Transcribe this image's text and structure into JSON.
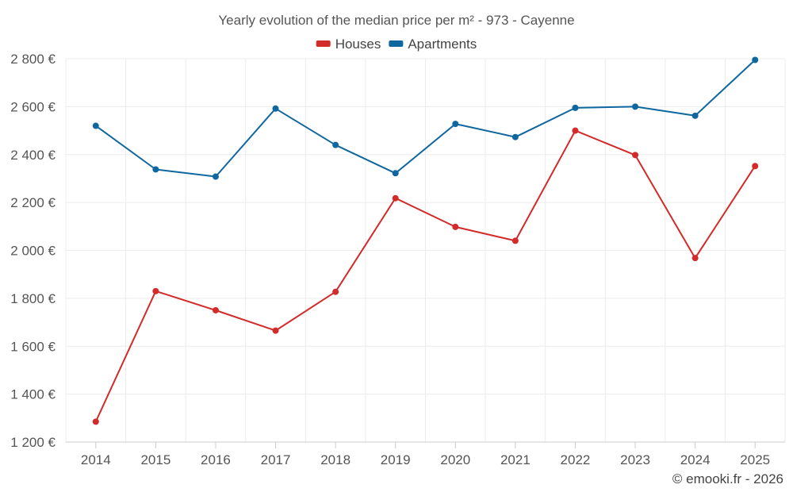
{
  "chart_data": {
    "type": "line",
    "title": "Yearly evolution of the median price per m² - 973 - Cayenne",
    "categories": [
      "2014",
      "2015",
      "2016",
      "2017",
      "2018",
      "2019",
      "2020",
      "2021",
      "2022",
      "2023",
      "2024",
      "2025"
    ],
    "series": [
      {
        "name": "Houses",
        "color": "#d32a2a",
        "values": [
          1285,
          1830,
          1750,
          1665,
          1827,
          2218,
          2098,
          2040,
          2500,
          2398,
          1968,
          2352
        ]
      },
      {
        "name": "Apartments",
        "color": "#0f67a0",
        "values": [
          2520,
          2338,
          2308,
          2592,
          2440,
          2322,
          2528,
          2473,
          2595,
          2600,
          2562,
          2795
        ]
      }
    ],
    "ylim": [
      1200,
      2800
    ],
    "yticks": [
      1200,
      1400,
      1600,
      1800,
      2000,
      2200,
      2400,
      2600,
      2800
    ],
    "ytick_labels": [
      "1 200 €",
      "1 400 €",
      "1 600 €",
      "1 800 €",
      "2 000 €",
      "2 200 €",
      "2 400 €",
      "2 600 €",
      "2 800 €"
    ],
    "grid": true,
    "legend_position": "top-center",
    "xlabel": "",
    "ylabel": ""
  },
  "credit": "© emooki.fr - 2026"
}
